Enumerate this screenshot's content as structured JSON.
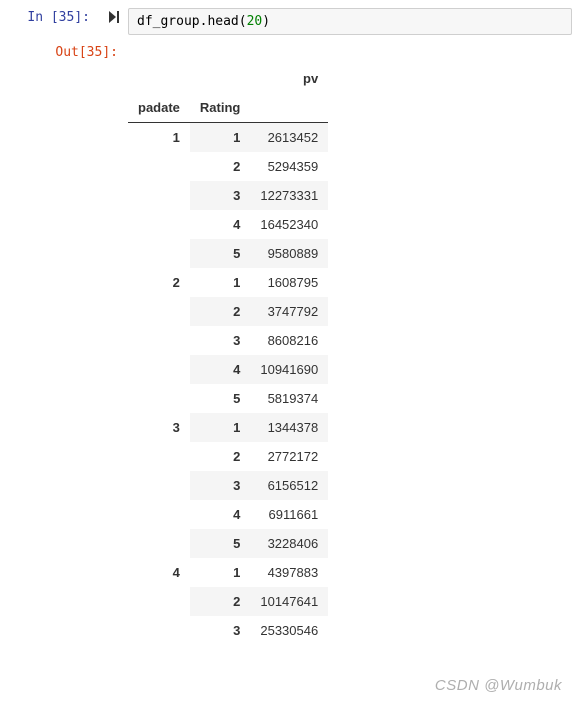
{
  "input": {
    "prompt_label": "In ",
    "exec_count": "[35]:",
    "code_obj": "df_group.",
    "code_method": "head",
    "code_open": "(",
    "code_arg": "20",
    "code_close": ")",
    "run_icon": "▶|"
  },
  "output": {
    "prompt_label": "Out[35]:",
    "columns": {
      "value_col": "pv",
      "index1": "padate",
      "index2": "Rating"
    },
    "rows": [
      {
        "padate": "1",
        "rating": "1",
        "pv": "2613452",
        "first": true
      },
      {
        "padate": "",
        "rating": "2",
        "pv": "5294359"
      },
      {
        "padate": "",
        "rating": "3",
        "pv": "12273331"
      },
      {
        "padate": "",
        "rating": "4",
        "pv": "16452340"
      },
      {
        "padate": "",
        "rating": "5",
        "pv": "9580889"
      },
      {
        "padate": "2",
        "rating": "1",
        "pv": "1608795",
        "first": true
      },
      {
        "padate": "",
        "rating": "2",
        "pv": "3747792"
      },
      {
        "padate": "",
        "rating": "3",
        "pv": "8608216"
      },
      {
        "padate": "",
        "rating": "4",
        "pv": "10941690"
      },
      {
        "padate": "",
        "rating": "5",
        "pv": "5819374"
      },
      {
        "padate": "3",
        "rating": "1",
        "pv": "1344378",
        "first": true
      },
      {
        "padate": "",
        "rating": "2",
        "pv": "2772172"
      },
      {
        "padate": "",
        "rating": "3",
        "pv": "6156512"
      },
      {
        "padate": "",
        "rating": "4",
        "pv": "6911661"
      },
      {
        "padate": "",
        "rating": "5",
        "pv": "3228406"
      },
      {
        "padate": "4",
        "rating": "1",
        "pv": "4397883",
        "first": true
      },
      {
        "padate": "",
        "rating": "2",
        "pv": "10147641"
      },
      {
        "padate": "",
        "rating": "3",
        "pv": "25330546"
      }
    ]
  },
  "watermark": "CSDN @Wumbuk"
}
